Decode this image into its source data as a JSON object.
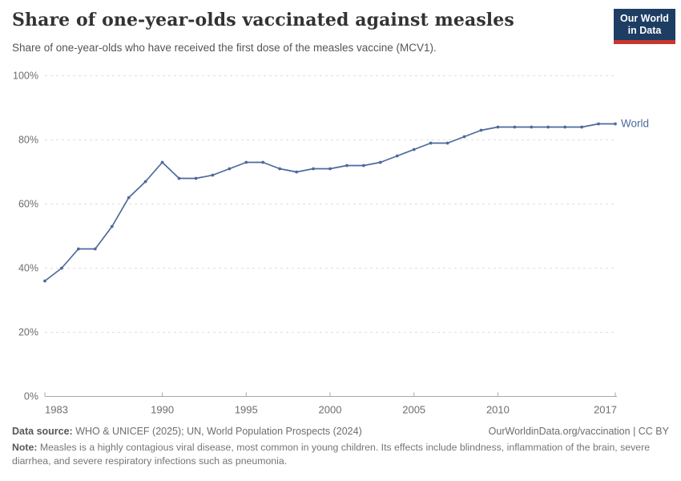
{
  "header": {
    "title": "Share of one-year-olds vaccinated against measles",
    "subtitle": "Share of one-year-olds who have received the first dose of the measles vaccine (MCV1).",
    "logo": {
      "line1": "Our World",
      "line2": "in Data",
      "bg_color": "#1d3d63",
      "accent_color": "#c8372d"
    }
  },
  "chart_data": {
    "type": "line",
    "title": "Share of one-year-olds vaccinated against measles",
    "xlabel": "",
    "ylabel": "",
    "x": [
      1983,
      1984,
      1985,
      1986,
      1987,
      1988,
      1989,
      1990,
      1991,
      1992,
      1993,
      1994,
      1995,
      1996,
      1997,
      1998,
      1999,
      2000,
      2001,
      2002,
      2003,
      2004,
      2005,
      2006,
      2007,
      2008,
      2009,
      2010,
      2011,
      2012,
      2013,
      2014,
      2015,
      2016,
      2017
    ],
    "series": [
      {
        "name": "World",
        "color": "#4c6a9c",
        "values": [
          36,
          40,
          46,
          46,
          53,
          62,
          67,
          73,
          68,
          68,
          69,
          71,
          73,
          73,
          71,
          70,
          71,
          71,
          72,
          72,
          73,
          75,
          77,
          79,
          79,
          81,
          83,
          84,
          84,
          84,
          84,
          84,
          84,
          85,
          85
        ]
      }
    ],
    "ylim": [
      0,
      100
    ],
    "yticks": [
      0,
      20,
      40,
      60,
      80,
      100
    ],
    "ytick_labels": [
      "0%",
      "20%",
      "40%",
      "60%",
      "80%",
      "100%"
    ],
    "xticks": [
      1983,
      1990,
      1995,
      2000,
      2005,
      2010,
      2017
    ],
    "grid": "horizontal-dashed",
    "legend_position": "end-of-line-label",
    "colors": {
      "line": "#4c6a9c",
      "grid": "#dedede",
      "axis": "#a8a8a8",
      "tick_label": "#6e6e6e"
    }
  },
  "footer": {
    "data_source_label": "Data source:",
    "data_source_rest": " WHO & UNICEF (2025); UN, World Population Prospects (2024)",
    "attribution": "OurWorldinData.org/vaccination | CC BY",
    "note_label": "Note:",
    "note_rest": " Measles is a highly contagious viral disease, most common in young children. Its effects include blindness, inflammation of the brain, severe diarrhea, and severe respiratory infections such as pneumonia."
  }
}
